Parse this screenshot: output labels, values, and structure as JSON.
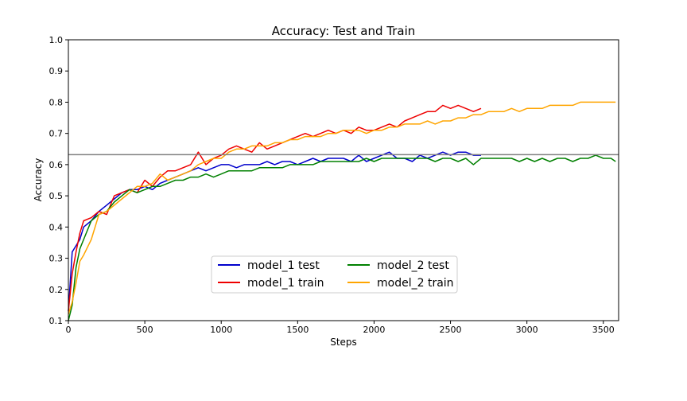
{
  "chart_data": {
    "type": "line",
    "title": "Accuracy: Test and Train",
    "xlabel": "Steps",
    "ylabel": "Accuracy",
    "xlim": [
      0,
      3600
    ],
    "ylim": [
      0.1,
      1.0
    ],
    "xticks": [
      0,
      500,
      1000,
      1500,
      2000,
      2500,
      3000,
      3500
    ],
    "yticks": [
      0.1,
      0.2,
      0.3,
      0.4,
      0.5,
      0.6,
      0.7,
      0.8,
      0.9,
      1.0
    ],
    "grid": false,
    "legend_position": "bottom-center",
    "reference_line": {
      "y": 0.632,
      "color": "#808080"
    },
    "series": [
      {
        "name": "model_1 test",
        "color": "#0000cc",
        "x": [
          0,
          25,
          50,
          75,
          100,
          150,
          200,
          250,
          300,
          350,
          400,
          450,
          500,
          550,
          600,
          650,
          700,
          750,
          800,
          850,
          900,
          950,
          1000,
          1050,
          1100,
          1150,
          1200,
          1250,
          1300,
          1350,
          1400,
          1450,
          1500,
          1550,
          1600,
          1650,
          1700,
          1750,
          1800,
          1850,
          1900,
          1950,
          2000,
          2050,
          2100,
          2150,
          2200,
          2250,
          2300,
          2350,
          2400,
          2450,
          2500,
          2550,
          2600,
          2650,
          2700
        ],
        "y": [
          0.13,
          0.32,
          0.34,
          0.36,
          0.4,
          0.42,
          0.45,
          0.47,
          0.49,
          0.51,
          0.52,
          0.52,
          0.53,
          0.52,
          0.54,
          0.55,
          0.56,
          0.57,
          0.58,
          0.59,
          0.58,
          0.59,
          0.6,
          0.6,
          0.59,
          0.6,
          0.6,
          0.6,
          0.61,
          0.6,
          0.61,
          0.61,
          0.6,
          0.61,
          0.62,
          0.61,
          0.62,
          0.62,
          0.62,
          0.61,
          0.63,
          0.61,
          0.62,
          0.63,
          0.64,
          0.62,
          0.62,
          0.61,
          0.63,
          0.62,
          0.63,
          0.64,
          0.63,
          0.64,
          0.64,
          0.63,
          0.63
        ]
      },
      {
        "name": "model_1 train",
        "color": "#ee0000",
        "x": [
          0,
          25,
          50,
          75,
          100,
          150,
          200,
          250,
          300,
          350,
          400,
          450,
          500,
          550,
          600,
          650,
          700,
          750,
          800,
          850,
          900,
          950,
          1000,
          1050,
          1100,
          1150,
          1200,
          1250,
          1300,
          1350,
          1400,
          1450,
          1500,
          1550,
          1600,
          1650,
          1700,
          1750,
          1800,
          1850,
          1900,
          1950,
          2000,
          2050,
          2100,
          2150,
          2200,
          2250,
          2300,
          2350,
          2400,
          2450,
          2500,
          2550,
          2600,
          2650,
          2700
        ],
        "y": [
          0.13,
          0.25,
          0.32,
          0.38,
          0.42,
          0.43,
          0.45,
          0.44,
          0.5,
          0.51,
          0.52,
          0.51,
          0.55,
          0.53,
          0.56,
          0.58,
          0.58,
          0.59,
          0.6,
          0.64,
          0.6,
          0.62,
          0.63,
          0.65,
          0.66,
          0.65,
          0.64,
          0.67,
          0.65,
          0.66,
          0.67,
          0.68,
          0.69,
          0.7,
          0.69,
          0.7,
          0.71,
          0.7,
          0.71,
          0.7,
          0.72,
          0.71,
          0.71,
          0.72,
          0.73,
          0.72,
          0.74,
          0.75,
          0.76,
          0.77,
          0.77,
          0.79,
          0.78,
          0.79,
          0.78,
          0.77,
          0.78
        ]
      },
      {
        "name": "model_2 test",
        "color": "#008000",
        "x": [
          0,
          25,
          50,
          75,
          100,
          150,
          200,
          250,
          300,
          350,
          400,
          450,
          500,
          550,
          600,
          650,
          700,
          750,
          800,
          850,
          900,
          950,
          1000,
          1050,
          1100,
          1150,
          1200,
          1250,
          1300,
          1350,
          1400,
          1450,
          1500,
          1550,
          1600,
          1650,
          1700,
          1750,
          1800,
          1850,
          1900,
          1950,
          2000,
          2050,
          2100,
          2150,
          2200,
          2250,
          2300,
          2350,
          2400,
          2450,
          2500,
          2550,
          2600,
          2650,
          2700,
          2750,
          2800,
          2850,
          2900,
          2950,
          3000,
          3050,
          3100,
          3150,
          3200,
          3250,
          3300,
          3350,
          3400,
          3450,
          3500,
          3550,
          3580
        ],
        "y": [
          0.1,
          0.15,
          0.27,
          0.33,
          0.36,
          0.42,
          0.44,
          0.45,
          0.48,
          0.5,
          0.52,
          0.51,
          0.52,
          0.53,
          0.53,
          0.54,
          0.55,
          0.55,
          0.56,
          0.56,
          0.57,
          0.56,
          0.57,
          0.58,
          0.58,
          0.58,
          0.58,
          0.59,
          0.59,
          0.59,
          0.59,
          0.6,
          0.6,
          0.6,
          0.6,
          0.61,
          0.61,
          0.61,
          0.61,
          0.61,
          0.61,
          0.62,
          0.61,
          0.62,
          0.62,
          0.62,
          0.62,
          0.62,
          0.62,
          0.62,
          0.61,
          0.62,
          0.62,
          0.61,
          0.62,
          0.6,
          0.62,
          0.62,
          0.62,
          0.62,
          0.62,
          0.61,
          0.62,
          0.61,
          0.62,
          0.61,
          0.62,
          0.62,
          0.61,
          0.62,
          0.62,
          0.63,
          0.62,
          0.62,
          0.61
        ]
      },
      {
        "name": "model_2 train",
        "color": "#ffa500",
        "x": [
          0,
          25,
          50,
          75,
          100,
          150,
          200,
          250,
          300,
          350,
          400,
          450,
          500,
          550,
          600,
          650,
          700,
          750,
          800,
          850,
          900,
          950,
          1000,
          1050,
          1100,
          1150,
          1200,
          1250,
          1300,
          1350,
          1400,
          1450,
          1500,
          1550,
          1600,
          1650,
          1700,
          1750,
          1800,
          1850,
          1900,
          1950,
          2000,
          2050,
          2100,
          2150,
          2200,
          2250,
          2300,
          2350,
          2400,
          2450,
          2500,
          2550,
          2600,
          2650,
          2700,
          2750,
          2800,
          2850,
          2900,
          2950,
          3000,
          3050,
          3100,
          3150,
          3200,
          3250,
          3300,
          3350,
          3400,
          3450,
          3500,
          3550,
          3580
        ],
        "y": [
          0.12,
          0.16,
          0.22,
          0.29,
          0.31,
          0.36,
          0.44,
          0.45,
          0.47,
          0.49,
          0.51,
          0.53,
          0.53,
          0.54,
          0.57,
          0.55,
          0.56,
          0.57,
          0.58,
          0.6,
          0.61,
          0.62,
          0.62,
          0.64,
          0.65,
          0.65,
          0.66,
          0.66,
          0.66,
          0.67,
          0.67,
          0.68,
          0.68,
          0.69,
          0.69,
          0.69,
          0.7,
          0.7,
          0.71,
          0.71,
          0.71,
          0.7,
          0.71,
          0.71,
          0.72,
          0.72,
          0.73,
          0.73,
          0.73,
          0.74,
          0.73,
          0.74,
          0.74,
          0.75,
          0.75,
          0.76,
          0.76,
          0.77,
          0.77,
          0.77,
          0.78,
          0.77,
          0.78,
          0.78,
          0.78,
          0.79,
          0.79,
          0.79,
          0.79,
          0.8,
          0.8,
          0.8,
          0.8,
          0.8,
          0.8
        ]
      }
    ]
  }
}
